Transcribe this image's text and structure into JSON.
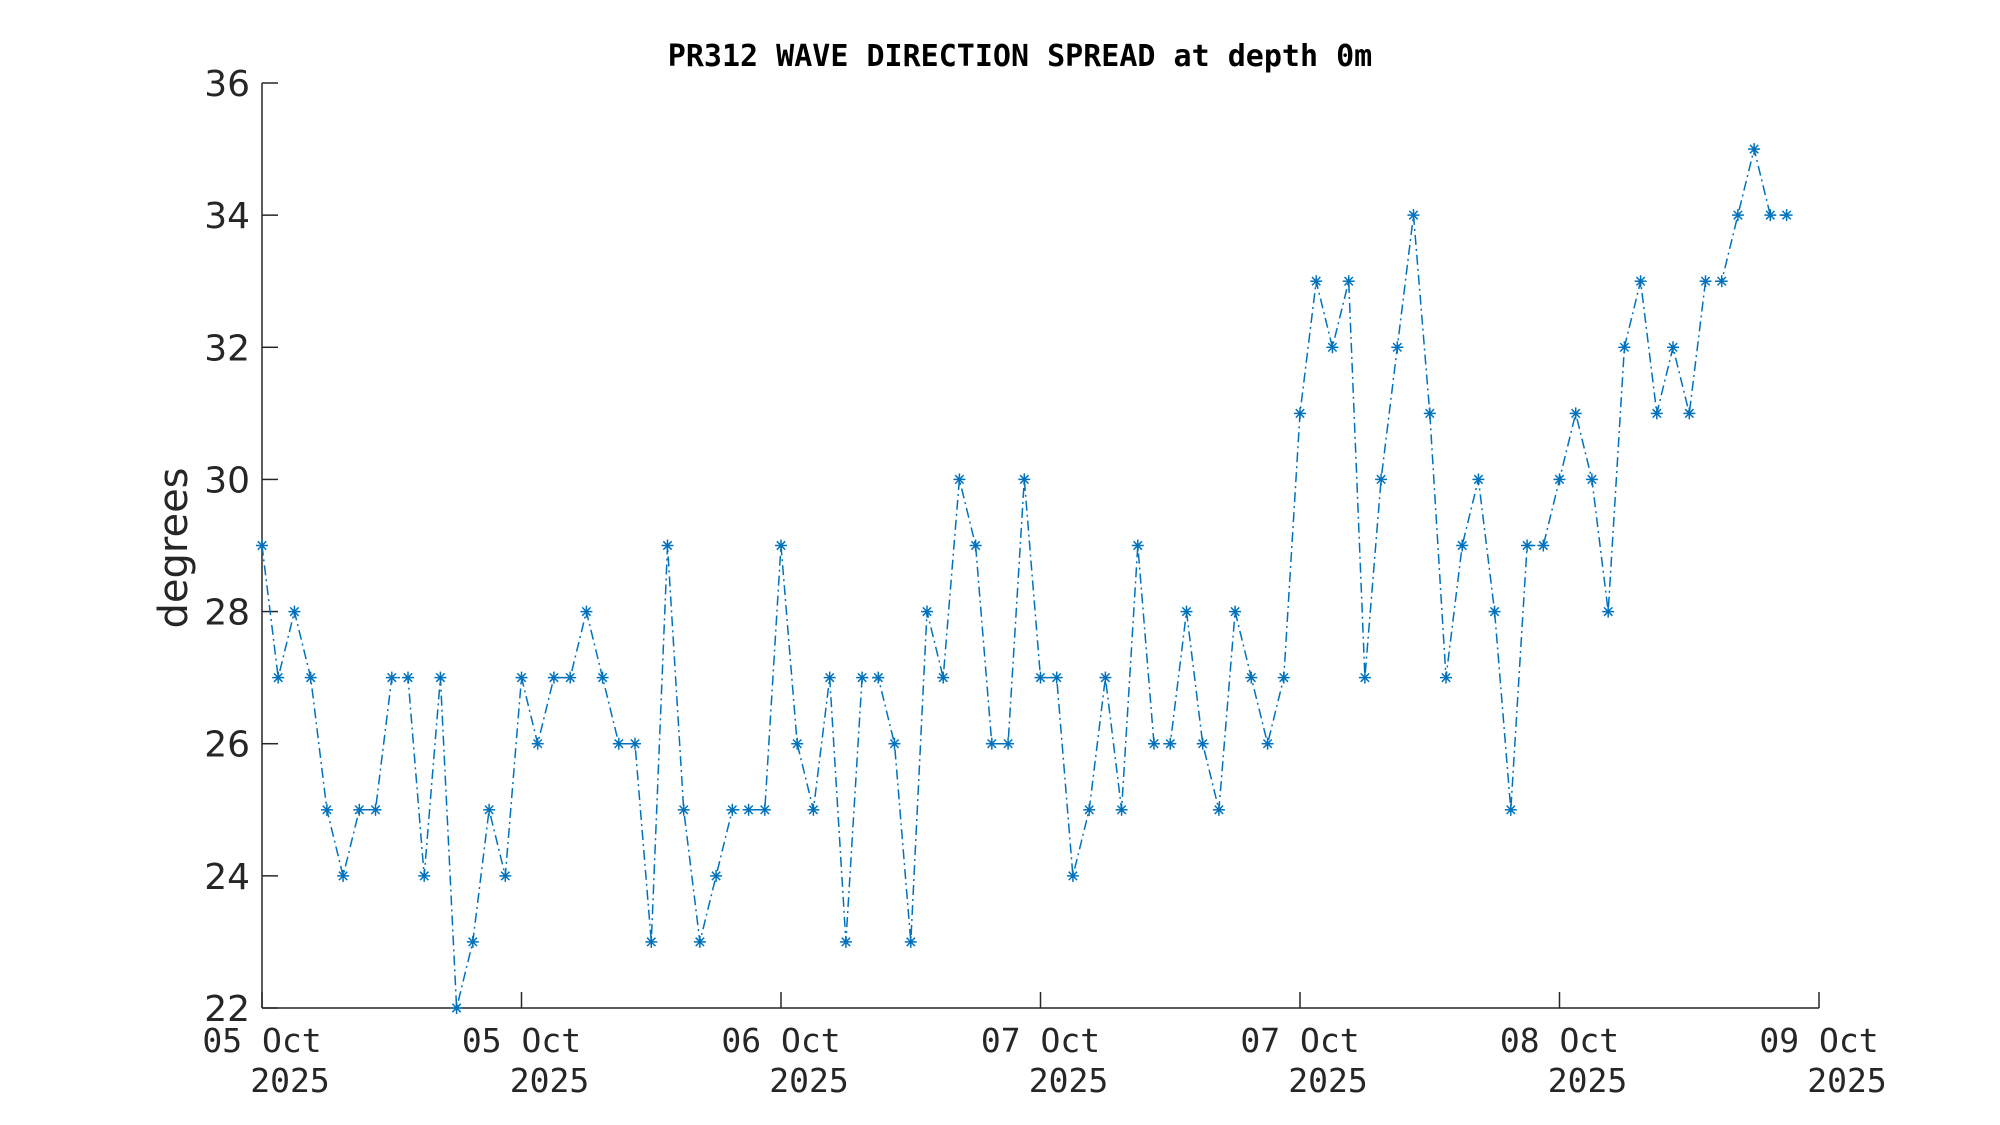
{
  "chart_data": {
    "type": "line",
    "title": "PR312 WAVE DIRECTION SPREAD at depth 0m",
    "xlabel": "",
    "ylabel": "degrees",
    "ylim": [
      22,
      36
    ],
    "yticks": [
      22,
      24,
      26,
      28,
      30,
      32,
      34,
      36
    ],
    "xlim": [
      "2025-10-05 00:00",
      "2025-10-09 00:00"
    ],
    "xticks": [
      {
        "value": "2025-10-05 00:00",
        "line1": "05 Oct",
        "line2": "2025"
      },
      {
        "value": "2025-10-05 16:00",
        "line1": "05 Oct",
        "line2": "2025"
      },
      {
        "value": "2025-10-06 08:00",
        "line1": "06 Oct",
        "line2": "2025"
      },
      {
        "value": "2025-10-07 00:00",
        "line1": "07 Oct",
        "line2": "2025"
      },
      {
        "value": "2025-10-07 16:00",
        "line1": "07 Oct",
        "line2": "2025"
      },
      {
        "value": "2025-10-08 08:00",
        "line1": "08 Oct",
        "line2": "2025"
      },
      {
        "value": "2025-10-09 00:00",
        "line1": "09 Oct",
        "line2": "2025"
      }
    ],
    "grid": false,
    "line_style": "dash-dot",
    "marker": "asterisk",
    "series_color": "#0072BD",
    "x_start": "2025-10-05 00:00",
    "x_step_minutes": 60,
    "values": [
      29,
      27,
      28,
      27,
      25,
      24,
      25,
      25,
      27,
      27,
      24,
      27,
      22,
      23,
      25,
      24,
      27,
      26,
      27,
      27,
      28,
      27,
      26,
      26,
      23,
      29,
      25,
      23,
      24,
      25,
      25,
      25,
      29,
      26,
      25,
      27,
      23,
      27,
      27,
      26,
      23,
      28,
      27,
      30,
      29,
      26,
      26,
      30,
      27,
      27,
      24,
      25,
      27,
      25,
      29,
      26,
      26,
      28,
      26,
      25,
      28,
      27,
      26,
      27,
      31,
      33,
      32,
      33,
      27,
      30,
      32,
      34,
      31,
      27,
      29,
      30,
      28,
      25,
      29,
      29,
      30,
      31,
      30,
      28,
      32,
      33,
      31,
      32,
      31,
      33,
      33,
      34,
      35,
      34,
      34
    ]
  }
}
